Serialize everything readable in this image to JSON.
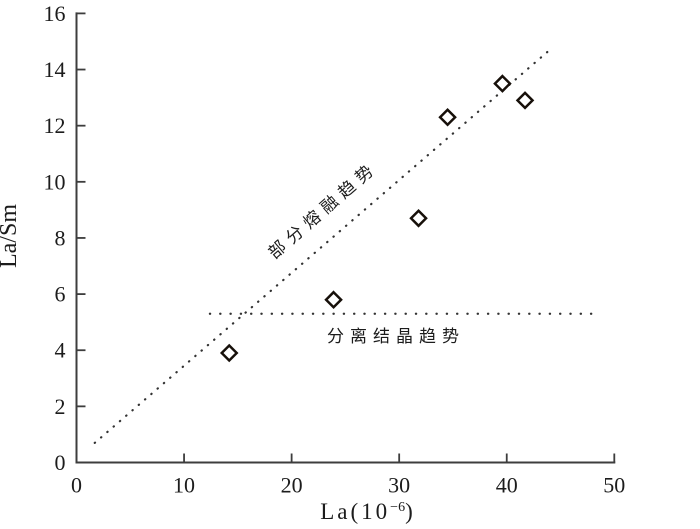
{
  "figure": {
    "background": "#ffffff",
    "ink_color": "#1c1c1c",
    "axis_color": "#3d3d3d",
    "marker_color": "#17100a"
  },
  "chart_data": {
    "type": "scatter",
    "title": "",
    "xlabel": "La(10⁻⁶)",
    "xlabel_parts": {
      "base": "La(10",
      "sup": "−6",
      "close": ")"
    },
    "ylabel": "La/Sm",
    "xlim": [
      0,
      50
    ],
    "ylim": [
      0,
      16
    ],
    "xticks": [
      0,
      10,
      20,
      30,
      40,
      50
    ],
    "yticks": [
      0,
      2,
      4,
      6,
      8,
      10,
      12,
      14,
      16
    ],
    "grid": false,
    "legend": false,
    "marker": "open-diamond",
    "points": [
      {
        "x": 14.2,
        "y": 3.9
      },
      {
        "x": 23.9,
        "y": 5.8
      },
      {
        "x": 31.8,
        "y": 8.7
      },
      {
        "x": 34.5,
        "y": 12.3
      },
      {
        "x": 39.6,
        "y": 13.5
      },
      {
        "x": 41.7,
        "y": 12.9
      }
    ],
    "trend_lines": [
      {
        "name": "partial-melting-trend",
        "label": "部分熔融趋势",
        "style": "dotted",
        "x1": 1.7,
        "y1": 0.7,
        "x2": 44.0,
        "y2": 14.7,
        "label_x": 22.9,
        "label_y": 9.0,
        "label_rotation": -41,
        "dot_gap": 8
      },
      {
        "name": "fractional-crystallization-trend",
        "label": "分离结晶趋势",
        "style": "dotted",
        "x1": 12.4,
        "y1": 5.3,
        "x2": 48.0,
        "y2": 5.3,
        "label_x": 29.7,
        "label_y": 4.5,
        "label_rotation": 0,
        "dot_gap": 10
      }
    ]
  }
}
